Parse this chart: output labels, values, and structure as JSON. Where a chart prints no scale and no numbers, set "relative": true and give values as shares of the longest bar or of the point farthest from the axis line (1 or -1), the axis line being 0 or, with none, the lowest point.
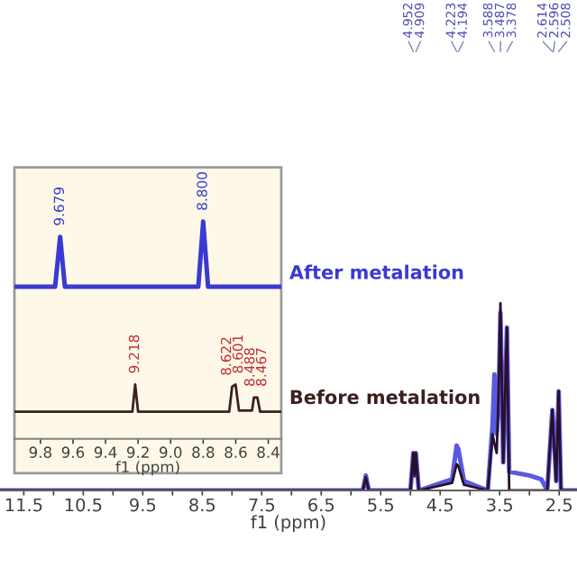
{
  "chart_data": [
    {
      "type": "line",
      "relative": true,
      "xlabel": "f1 (ppm)",
      "xlim": [
        11.9,
        2.2
      ],
      "xticks": [
        11.5,
        {
          "value": 11,
          "label": null
        },
        10.5,
        {
          "value": 10,
          "label": null
        },
        9.5,
        {
          "value": 9,
          "label": null
        },
        8.5,
        {
          "value": 8,
          "label": null
        },
        7.5,
        {
          "value": 7,
          "label": null
        },
        6.5,
        {
          "value": 6,
          "label": null
        },
        5.5,
        {
          "value": 5,
          "label": null
        },
        4.5,
        {
          "value": 4,
          "label": null
        },
        3.5,
        {
          "value": 3,
          "label": null
        },
        2.5
      ],
      "grid": false,
      "legend": false,
      "marker": "none",
      "line_style": "solid",
      "series": [
        {
          "color": "#5a5ae0",
          "x": [
            11.9,
            5.8,
            5.75,
            5.7,
            5.0,
            4.952,
            4.93,
            4.909,
            4.86,
            4.3,
            4.223,
            4.194,
            4.1,
            3.7,
            3.62,
            3.588,
            3.55,
            3.52,
            3.487,
            3.44,
            3.378,
            3.34,
            3.0,
            2.8,
            2.7,
            2.614,
            2.596,
            2.55,
            2.508,
            2.47,
            2.2
          ],
          "values": [
            0,
            0,
            0.08,
            0,
            0,
            0.2,
            0.08,
            0.2,
            0,
            0.06,
            0.24,
            0.22,
            0.05,
            0,
            0.35,
            0.62,
            0.3,
            0.45,
            0.95,
            0.15,
            0.87,
            0.1,
            0.08,
            0.06,
            0,
            0.43,
            0.35,
            0.05,
            0.53,
            0,
            0
          ]
        },
        {
          "color": "#2a0f2a",
          "x": [
            11.9,
            5.8,
            5.75,
            5.7,
            5.0,
            4.952,
            4.93,
            4.909,
            4.86,
            4.3,
            4.223,
            4.194,
            4.1,
            3.7,
            3.62,
            3.588,
            3.55,
            3.52,
            3.487,
            3.44,
            3.378,
            3.34,
            2.7,
            2.614,
            2.596,
            2.55,
            2.508,
            2.47,
            2.2
          ],
          "values": [
            0,
            0,
            0.07,
            0,
            0,
            0.2,
            0.08,
            0.2,
            0,
            0.04,
            0.14,
            0.13,
            0.03,
            0,
            0.3,
            0.25,
            0.2,
            0.5,
            1.0,
            0.15,
            0.87,
            0,
            0,
            0.43,
            0.3,
            0.05,
            0.53,
            0,
            0
          ]
        }
      ],
      "annotations": [
        {
          "text": "4.952",
          "x": 4.952
        },
        {
          "text": "4.909",
          "x": 4.909
        },
        {
          "text": "4.223",
          "x": 4.223
        },
        {
          "text": "4.194",
          "x": 4.194
        },
        {
          "text": "3.588",
          "x": 3.588
        },
        {
          "text": "3.487",
          "x": 3.487
        },
        {
          "text": "3.378",
          "x": 3.378
        },
        {
          "text": "2.614",
          "x": 2.614
        },
        {
          "text": "2.596",
          "x": 2.596
        },
        {
          "text": "2.508",
          "x": 2.508
        }
      ]
    },
    {
      "type": "line",
      "relative": true,
      "xlabel": "f1 (ppm)",
      "xlim": [
        9.96,
        8.32
      ],
      "xticks": [
        9.8,
        9.6,
        9.4,
        9.2,
        {
          "value": 9,
          "label": "9.0"
        },
        8.8,
        8.6,
        8.4
      ],
      "grid": false,
      "legend": false,
      "marker": "none",
      "line_style": "solid",
      "series": [
        {
          "name": "After metalation",
          "color": "#3a3ad0",
          "x": [
            9.96,
            9.71,
            9.679,
            9.65,
            8.83,
            8.8,
            8.77,
            8.32
          ],
          "values": [
            0.7,
            0.7,
            0.93,
            0.7,
            0.7,
            1.0,
            0.7,
            0.7
          ]
        },
        {
          "name": "Before metalation",
          "color": "#3a2020",
          "x": [
            9.96,
            9.235,
            9.218,
            9.2,
            8.64,
            8.622,
            8.601,
            8.58,
            8.5,
            8.488,
            8.467,
            8.45,
            8.32
          ],
          "values": [
            0.125,
            0.125,
            0.25,
            0.125,
            0.125,
            0.24,
            0.25,
            0.13,
            0.13,
            0.19,
            0.19,
            0.125,
            0.125
          ]
        }
      ],
      "annotations": [
        {
          "text": "9.679",
          "x": 9.679,
          "y": 0.93
        },
        {
          "text": "8.800",
          "x": 8.8,
          "y": 1.0
        },
        {
          "text": "9.218",
          "x": 9.218,
          "y": 0.25
        },
        {
          "text": "8.622",
          "x": 8.622,
          "y": 0.24
        },
        {
          "text": "8.601",
          "x": 8.601,
          "y": 0.25
        },
        {
          "text": "8.488",
          "x": 8.488,
          "y": 0.19
        },
        {
          "text": "8.467",
          "x": 8.467,
          "y": 0.19
        }
      ]
    }
  ]
}
